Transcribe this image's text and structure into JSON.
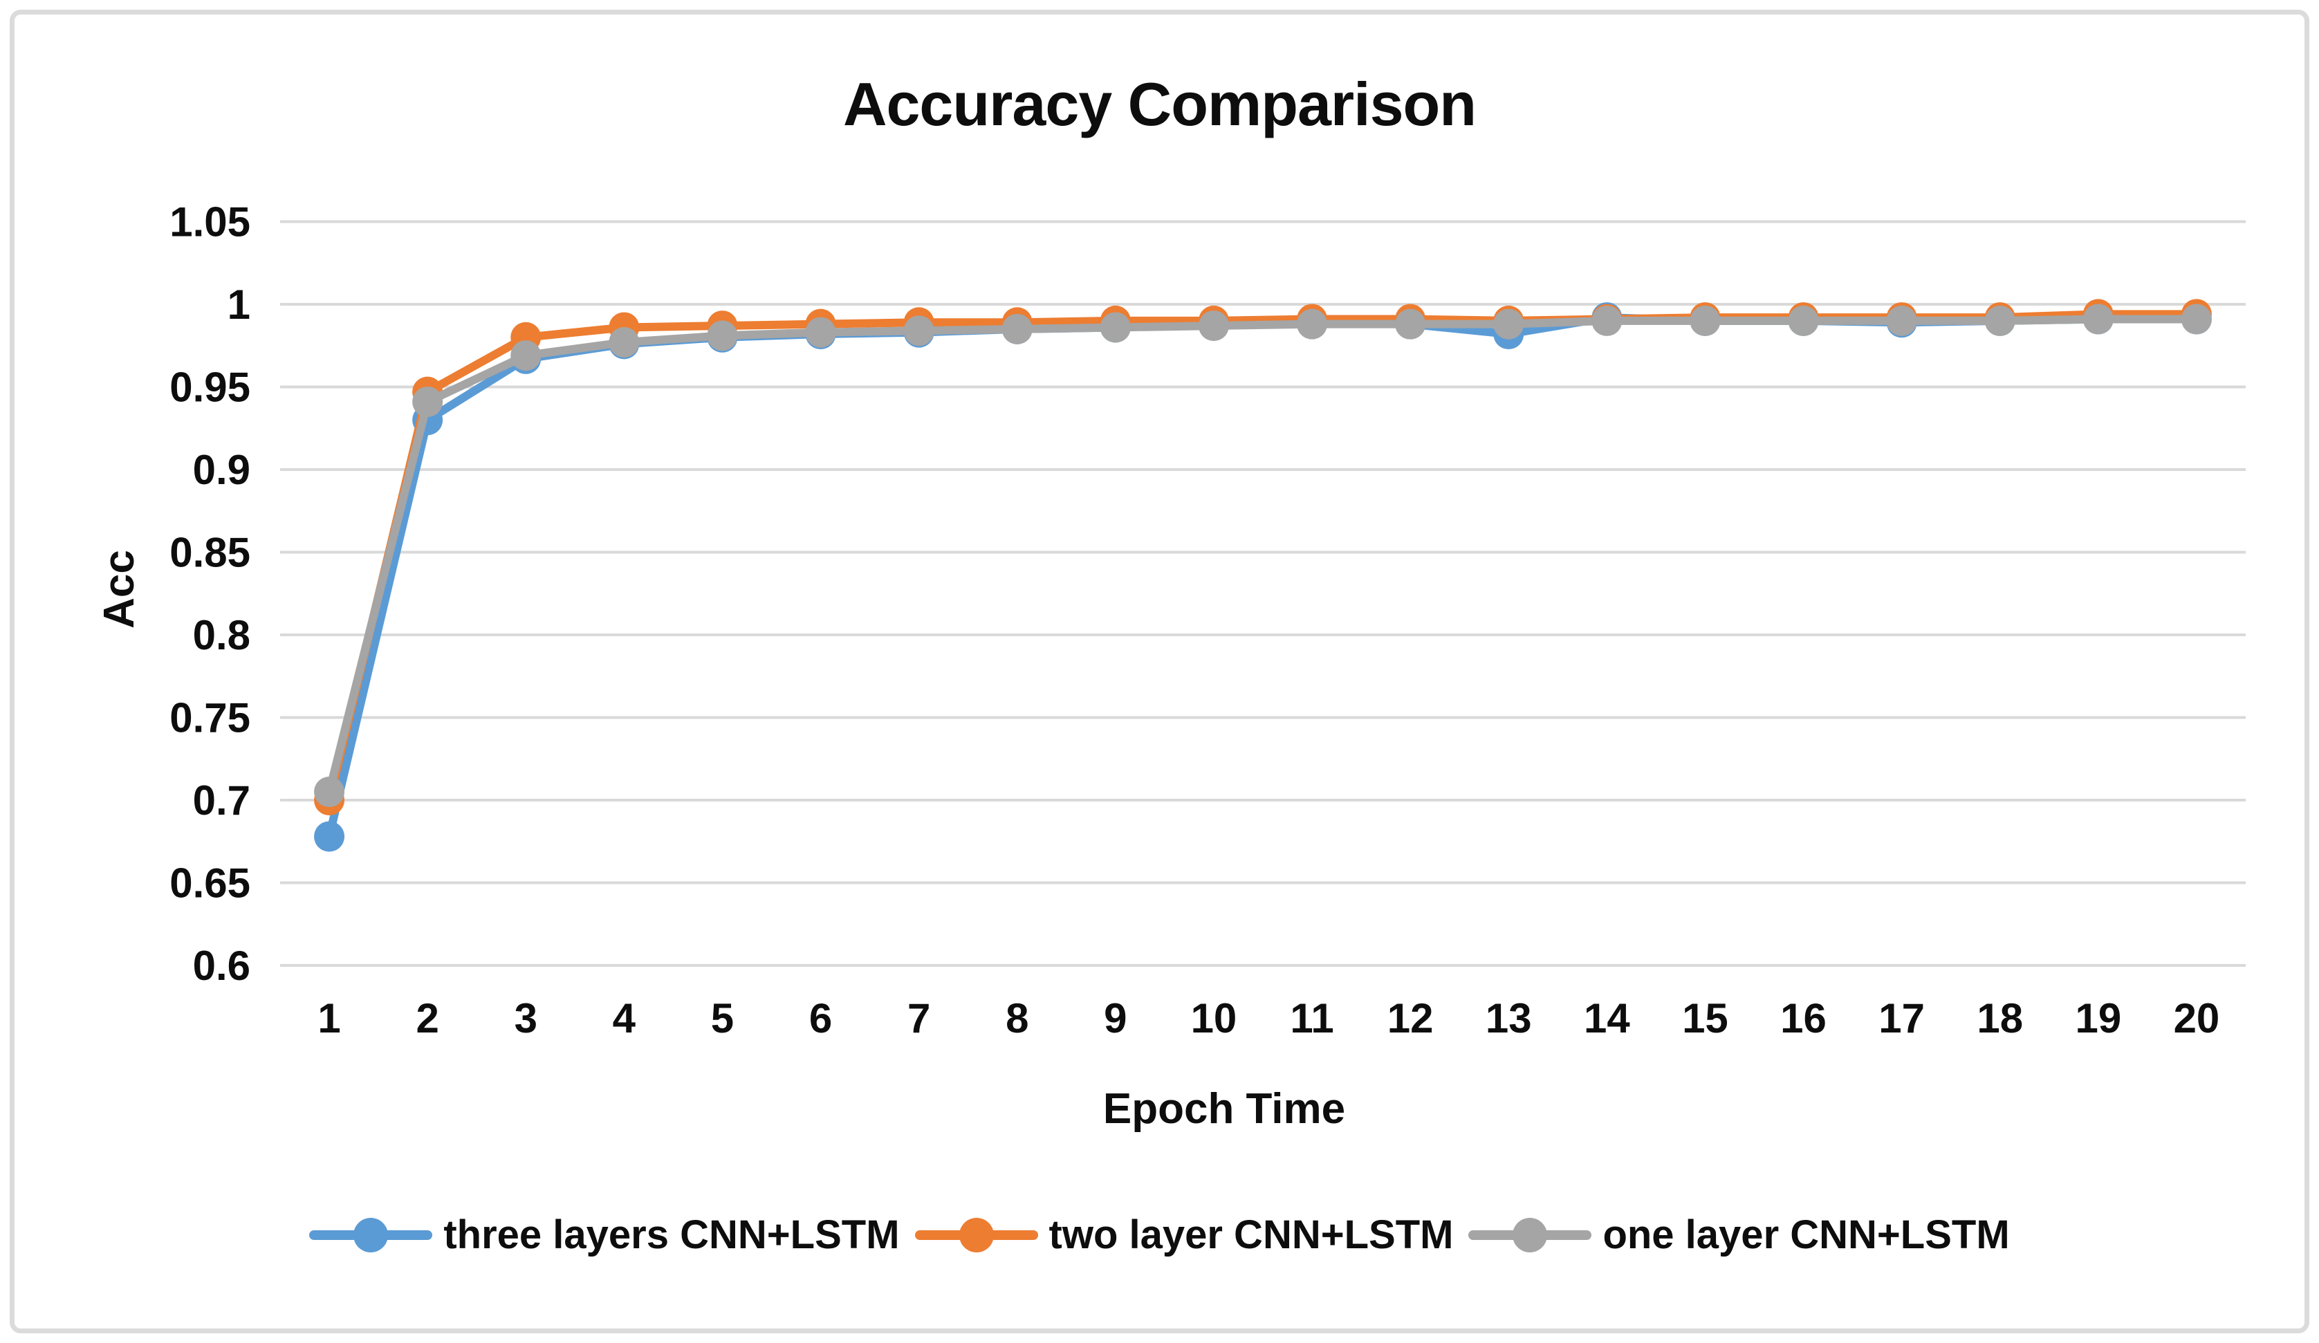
{
  "chart_data": {
    "type": "line",
    "title": "Accuracy Comparison",
    "xlabel": "Epoch Time",
    "ylabel": "Acc",
    "x": [
      1,
      2,
      3,
      4,
      5,
      6,
      7,
      8,
      9,
      10,
      11,
      12,
      13,
      14,
      15,
      16,
      17,
      18,
      19,
      20
    ],
    "ylim": [
      0.6,
      1.05
    ],
    "ytick_step": 0.05,
    "ytick_labels": [
      "1.05",
      "1",
      "0.95",
      "0.9",
      "0.85",
      "0.8",
      "0.75",
      "0.7",
      "0.65",
      "0.6"
    ],
    "grid": true,
    "legend_position": "bottom",
    "series": [
      {
        "name": "three layers CNN+LSTM",
        "color": "#5B9BD5",
        "values": [
          0.678,
          0.93,
          0.967,
          0.976,
          0.98,
          0.982,
          0.983,
          0.985,
          0.986,
          0.989,
          0.989,
          0.988,
          0.982,
          0.992,
          0.99,
          0.99,
          0.989,
          0.99,
          0.991,
          0.991
        ]
      },
      {
        "name": "two layer CNN+LSTM",
        "color": "#ED7D31",
        "values": [
          0.7,
          0.947,
          0.98,
          0.986,
          0.987,
          0.988,
          0.989,
          0.989,
          0.99,
          0.99,
          0.991,
          0.991,
          0.99,
          0.991,
          0.992,
          0.992,
          0.992,
          0.992,
          0.994,
          0.994
        ]
      },
      {
        "name": "one layer CNN+LSTM",
        "color": "#A5A5A5",
        "values": [
          0.705,
          0.941,
          0.969,
          0.977,
          0.981,
          0.983,
          0.984,
          0.985,
          0.986,
          0.987,
          0.988,
          0.988,
          0.988,
          0.99,
          0.99,
          0.99,
          0.99,
          0.99,
          0.991,
          0.991
        ]
      }
    ],
    "style": {
      "gridline_color": "#D9D9D9",
      "text_color": "#0d0d0d",
      "figure_border_color": "#DBDBDB",
      "background_color": "#FFFFFF"
    }
  }
}
